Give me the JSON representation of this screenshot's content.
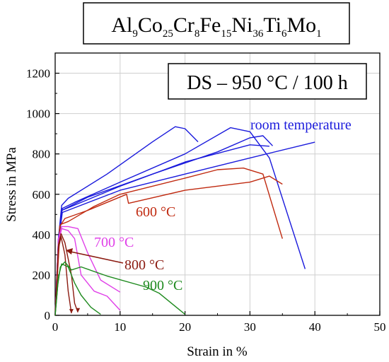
{
  "chart_data": {
    "type": "line",
    "title": {
      "parts": [
        {
          "t": "Al",
          "s": false
        },
        {
          "t": "9",
          "s": true
        },
        {
          "t": "Co",
          "s": false
        },
        {
          "t": "25",
          "s": true
        },
        {
          "t": "Cr",
          "s": false
        },
        {
          "t": "8",
          "s": true
        },
        {
          "t": "Fe",
          "s": false
        },
        {
          "t": "15",
          "s": true
        },
        {
          "t": "Ni",
          "s": false
        },
        {
          "t": "36",
          "s": true
        },
        {
          "t": "Ti",
          "s": false
        },
        {
          "t": "6",
          "s": true
        },
        {
          "t": "Mo",
          "s": false
        },
        {
          "t": "1",
          "s": true
        }
      ]
    },
    "condition_label": "DS – 950 °C / 100 h",
    "xlabel": "Strain in %",
    "ylabel": "Stress in MPa",
    "xlim": [
      0,
      50
    ],
    "ylim": [
      0,
      1300
    ],
    "xticks": [
      0,
      10,
      20,
      30,
      40,
      50
    ],
    "yticks": [
      0,
      200,
      400,
      600,
      800,
      1000,
      1200
    ],
    "grid": true,
    "series": [
      {
        "name": "room temperature",
        "color": "#1a1adc",
        "curves": [
          [
            [
              0,
              0
            ],
            [
              0.5,
              380
            ],
            [
              1.0,
              545
            ],
            [
              2,
              580
            ],
            [
              8,
              700
            ],
            [
              15,
              860
            ],
            [
              18.5,
              935
            ],
            [
              20,
              925
            ],
            [
              22,
              860
            ]
          ],
          [
            [
              0,
              0
            ],
            [
              0.6,
              400
            ],
            [
              1.1,
              530
            ],
            [
              3,
              560
            ],
            [
              10,
              660
            ],
            [
              20,
              800
            ],
            [
              27,
              930
            ],
            [
              30,
              910
            ],
            [
              33,
              780
            ],
            [
              38.5,
              230
            ]
          ],
          [
            [
              0,
              0
            ],
            [
              0.5,
              380
            ],
            [
              1.0,
              520
            ],
            [
              5,
              585
            ],
            [
              15,
              700
            ],
            [
              25,
              810
            ],
            [
              30,
              880
            ],
            [
              32,
              890
            ],
            [
              33.5,
              840
            ]
          ],
          [
            [
              0,
              0
            ],
            [
              0.6,
              400
            ],
            [
              1.0,
              520
            ],
            [
              10,
              640
            ],
            [
              20,
              760
            ],
            [
              30,
              845
            ],
            [
              33,
              838
            ]
          ],
          [
            [
              0,
              0
            ],
            [
              0.5,
              360
            ],
            [
              1.1,
              510
            ],
            [
              10,
              620
            ],
            [
              20,
              700
            ],
            [
              30,
              780
            ],
            [
              40,
              858
            ]
          ]
        ]
      },
      {
        "name": "600 °C",
        "color": "#c02a10",
        "curves": [
          [
            [
              0,
              0
            ],
            [
              0.7,
              440
            ],
            [
              1.5,
              480
            ],
            [
              5,
              520
            ],
            [
              11,
              600
            ],
            [
              11.3,
              555
            ],
            [
              20,
              620
            ],
            [
              30,
              660
            ],
            [
              33,
              690
            ],
            [
              35,
              650
            ]
          ],
          [
            [
              0,
              0
            ],
            [
              0.8,
              450
            ],
            [
              2,
              465
            ],
            [
              6,
              540
            ],
            [
              10,
              600
            ],
            [
              20,
              680
            ],
            [
              25,
              722
            ],
            [
              29,
              730
            ],
            [
              32,
              700
            ],
            [
              35,
              380
            ]
          ]
        ]
      },
      {
        "name": "700 °C",
        "color": "#e040e8",
        "curves": [
          [
            [
              0,
              0
            ],
            [
              0.5,
              380
            ],
            [
              1.0,
              440
            ],
            [
              2.0,
              440
            ],
            [
              3.5,
              430
            ],
            [
              5,
              310
            ],
            [
              7,
              175
            ],
            [
              10,
              115
            ]
          ],
          [
            [
              0,
              0
            ],
            [
              0.5,
              360
            ],
            [
              1.0,
              430
            ],
            [
              2,
              420
            ],
            [
              3,
              380
            ],
            [
              4,
              200
            ],
            [
              6,
              120
            ],
            [
              8,
              95
            ],
            [
              10,
              25
            ]
          ]
        ]
      },
      {
        "name": "800 °C",
        "color": "#8b1a10",
        "curves": [
          [
            [
              0,
              0
            ],
            [
              0.5,
              350
            ],
            [
              0.9,
              405
            ],
            [
              1.5,
              360
            ],
            [
              2.5,
              200
            ],
            [
              3,
              60
            ],
            [
              3.5,
              15
            ]
          ],
          [
            [
              0,
              0
            ],
            [
              0.5,
              330
            ],
            [
              0.9,
              390
            ],
            [
              1.5,
              300
            ],
            [
              2,
              120
            ],
            [
              2.5,
              10
            ]
          ]
        ]
      },
      {
        "name": "900 °C",
        "color": "#1e8a1e",
        "curves": [
          [
            [
              0,
              0
            ],
            [
              0.4,
              150
            ],
            [
              0.8,
              240
            ],
            [
              1.5,
              265
            ],
            [
              2.5,
              225
            ],
            [
              4,
              240
            ],
            [
              8,
              195
            ],
            [
              14,
              140
            ],
            [
              16,
              110
            ],
            [
              20,
              5
            ]
          ],
          [
            [
              0,
              0
            ],
            [
              0.5,
              190
            ],
            [
              1.0,
              255
            ],
            [
              2,
              240
            ],
            [
              3,
              160
            ],
            [
              4,
              100
            ],
            [
              5.5,
              40
            ],
            [
              7,
              5
            ]
          ]
        ]
      }
    ]
  }
}
